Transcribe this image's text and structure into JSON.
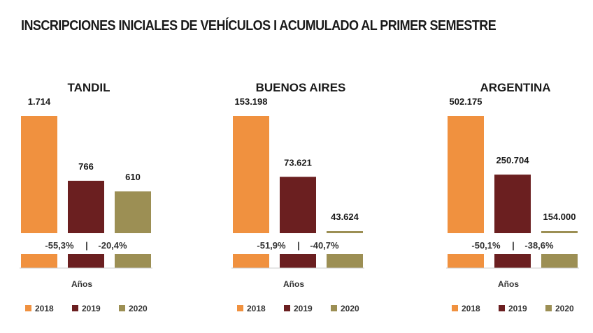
{
  "title": "INSCRIPCIONES INICIALES DE VEHÍCULOS I ACUMULADO AL PRIMER SEMESTRE",
  "colors": {
    "2018": "#f0913f",
    "2019": "#6b1f20",
    "2020": "#9c8f54"
  },
  "chart_data": [
    {
      "type": "bar",
      "title": "TANDIL",
      "categories": [
        "2018",
        "2019",
        "2020"
      ],
      "values": [
        1714,
        766,
        610
      ],
      "value_labels": [
        "1.714",
        "766",
        "610"
      ],
      "changes": [
        "-55,3%",
        "|",
        "-20,4%"
      ],
      "xlabel": "Años",
      "legend": [
        "2018",
        "2019",
        "2020"
      ],
      "legend_position": "bottom"
    },
    {
      "type": "bar",
      "title": "BUENOS AIRES",
      "categories": [
        "2018",
        "2019",
        "2020"
      ],
      "values": [
        153198,
        73621,
        43624
      ],
      "value_labels": [
        "153.198",
        "73.621",
        "43.624"
      ],
      "changes": [
        "-51,9%",
        "|",
        "-40,7%"
      ],
      "xlabel": "Años",
      "legend": [
        "2018",
        "2019",
        "2020"
      ],
      "legend_position": "bottom"
    },
    {
      "type": "bar",
      "title": "ARGENTINA",
      "categories": [
        "2018",
        "2019",
        "2020"
      ],
      "values": [
        502175,
        250704,
        154000
      ],
      "value_labels": [
        "502.175",
        "250.704",
        "154.000"
      ],
      "changes": [
        "-50,1%",
        "|",
        "-38,6%"
      ],
      "xlabel": "Años",
      "legend": [
        "2018",
        "2019",
        "2020"
      ],
      "legend_position": "bottom"
    }
  ]
}
